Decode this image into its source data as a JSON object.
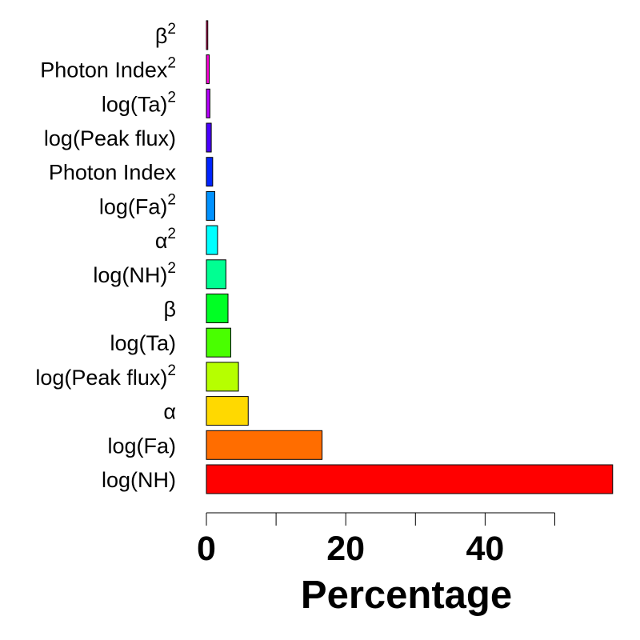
{
  "chart_data": {
    "type": "bar",
    "orientation": "horizontal",
    "categories": [
      {
        "label": "log(NH)",
        "sup": ""
      },
      {
        "label": "log(Fa)",
        "sup": ""
      },
      {
        "label": "α",
        "sup": ""
      },
      {
        "label": "log(Peak flux)",
        "sup": "2"
      },
      {
        "label": "log(Ta)",
        "sup": ""
      },
      {
        "label": "β",
        "sup": ""
      },
      {
        "label": "log(NH)",
        "sup": "2"
      },
      {
        "label": "α",
        "sup": "2"
      },
      {
        "label": "log(Fa)",
        "sup": "2"
      },
      {
        "label": "Photon Index",
        "sup": ""
      },
      {
        "label": "log(Peak flux)",
        "sup": ""
      },
      {
        "label": "log(Ta)",
        "sup": "2"
      },
      {
        "label": "Photon Index",
        "sup": "2"
      },
      {
        "label": "β",
        "sup": "2"
      }
    ],
    "values": [
      58.3,
      16.6,
      6.0,
      4.6,
      3.5,
      3.1,
      2.8,
      1.6,
      1.2,
      0.9,
      0.7,
      0.5,
      0.4,
      0.2
    ],
    "colors": [
      "#FF0000",
      "#FF6D00",
      "#FFD900",
      "#B6FF00",
      "#49FF00",
      "#00FF24",
      "#00FF92",
      "#00FFFF",
      "#0092FF",
      "#0024FF",
      "#4900FF",
      "#B600FF",
      "#FF00DB",
      "#FF006D"
    ],
    "xlabel": "Percentage",
    "ylabel": "",
    "xlim": [
      0,
      58.3
    ],
    "xticks": [
      0,
      10,
      20,
      30,
      40,
      50
    ],
    "xtick_labels": [
      "0",
      "",
      "20",
      "",
      "40",
      ""
    ],
    "grid": false
  }
}
